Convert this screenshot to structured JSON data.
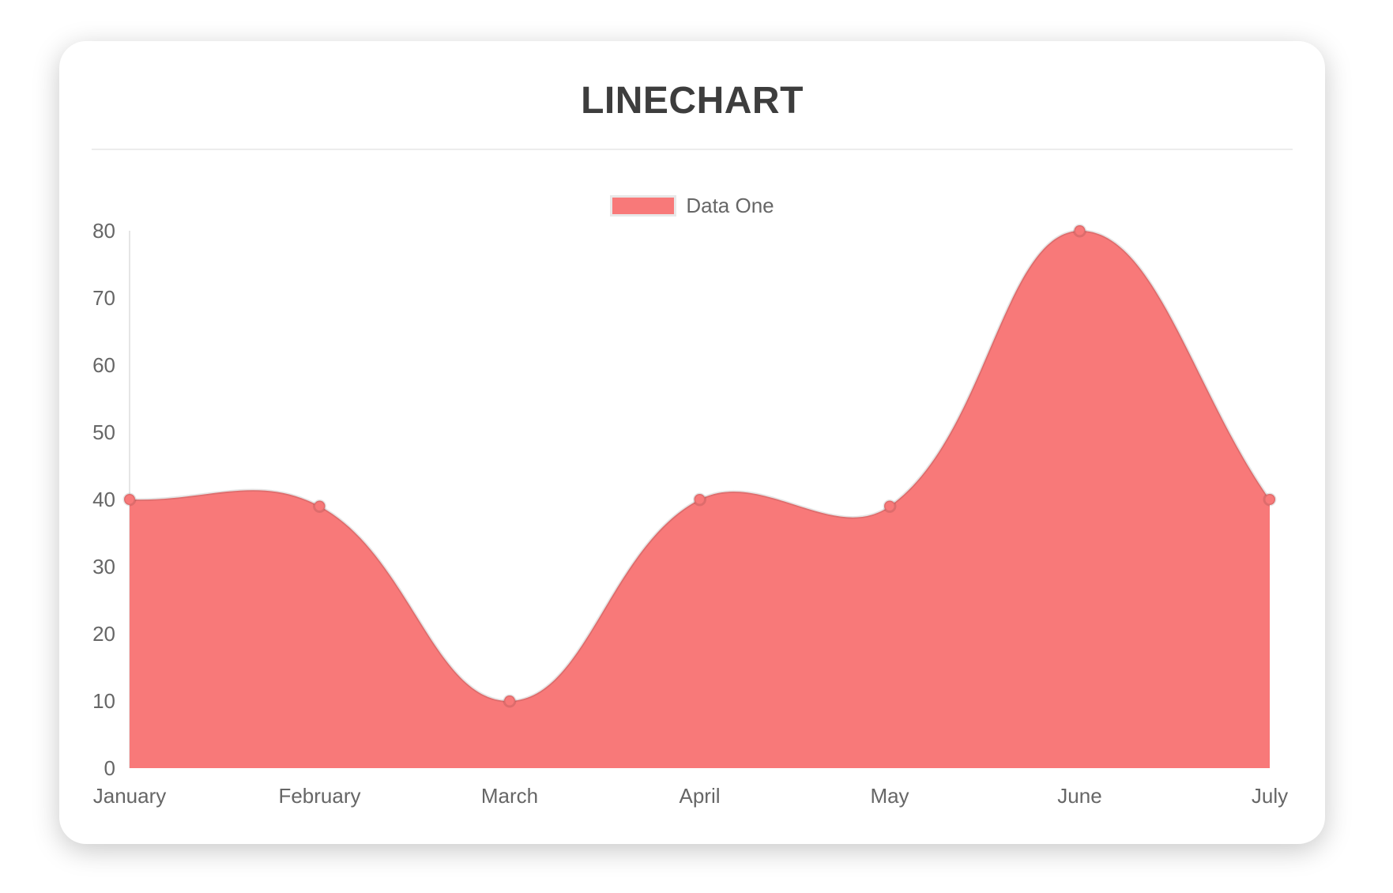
{
  "card": {
    "background": "#ffffff"
  },
  "legend": {
    "label": "Data One",
    "swatch_color": "#f87979",
    "position": "top"
  },
  "chart_data": {
    "type": "area",
    "title": "LINECHART",
    "categories": [
      "January",
      "February",
      "March",
      "April",
      "May",
      "June",
      "July"
    ],
    "series": [
      {
        "name": "Data One",
        "values": [
          40,
          39,
          10,
          40,
          39,
          80,
          40
        ]
      }
    ],
    "ylim": [
      0,
      80
    ],
    "ytick_step": 10,
    "yticks": [
      0,
      10,
      20,
      30,
      40,
      50,
      60,
      70,
      80
    ],
    "grid": false,
    "legend_position": "top",
    "curve_tension": 0.4,
    "colors": {
      "fill": "#f87979",
      "line": "rgba(0,0,0,0.10)",
      "point_fill": "#f87979",
      "point_stroke": "rgba(0,0,0,0.10)",
      "axis_line": "rgba(0,0,0,0.10)",
      "tick_text": "#666666",
      "title_text": "#3d3d3d",
      "divider": "#ededed"
    }
  }
}
